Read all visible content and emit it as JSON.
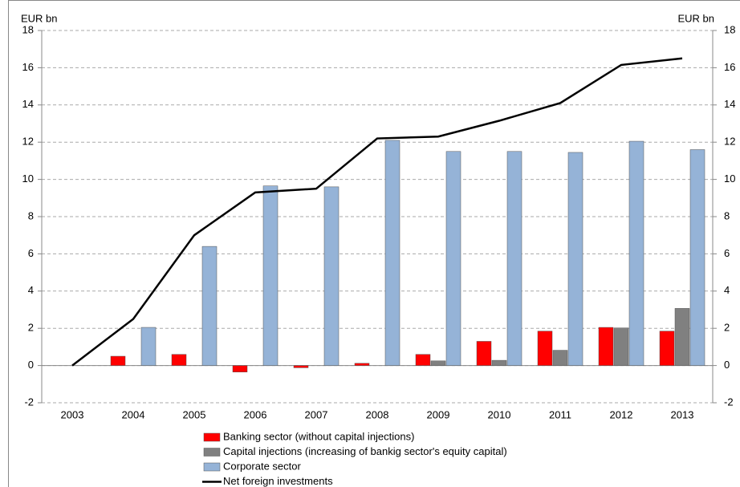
{
  "chart_data": {
    "type": "bar",
    "y_label": "EUR bn",
    "y2_label": "EUR bn",
    "categories": [
      "2003",
      "2004",
      "2005",
      "2006",
      "2007",
      "2008",
      "2009",
      "2010",
      "2011",
      "2012",
      "2013"
    ],
    "series": [
      {
        "name": "Banking sector (without capital injections)",
        "color": "#ff0000",
        "values": [
          0,
          0.5,
          0.6,
          -0.35,
          -0.12,
          0.12,
          0.6,
          1.3,
          1.85,
          2.05,
          1.85
        ]
      },
      {
        "name": "Capital injections (increasing of bankig sector's equity capital)",
        "color": "#808080",
        "values": [
          0,
          0,
          0,
          0,
          0,
          0,
          0.25,
          0.28,
          0.82,
          2.02,
          3.07
        ]
      },
      {
        "name": "Corporate sector",
        "color": "#95b3d7",
        "values": [
          0,
          2.05,
          6.4,
          9.65,
          9.6,
          12.1,
          11.5,
          11.5,
          11.45,
          12.05,
          11.6
        ]
      },
      {
        "name": "Net foreign investments",
        "color": "#000000",
        "type": "line",
        "values": [
          0,
          2.5,
          7.0,
          9.3,
          9.5,
          12.2,
          12.3,
          13.15,
          14.1,
          16.15,
          16.5
        ]
      }
    ],
    "ylim": [
      -2,
      18
    ],
    "yticks": [
      -2,
      0,
      2,
      4,
      6,
      8,
      10,
      12,
      14,
      16,
      18
    ],
    "y2lim": [
      -2,
      18
    ],
    "y2ticks": [
      -2,
      0,
      2,
      4,
      6,
      8,
      10,
      12,
      14,
      16,
      18
    ],
    "grid": true
  }
}
